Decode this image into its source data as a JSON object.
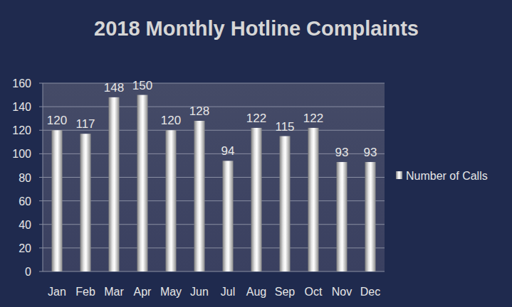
{
  "chart_data": {
    "type": "bar",
    "title": "2018 Monthly Hotline Complaints",
    "categories": [
      "Jan",
      "Feb",
      "Mar",
      "Apr",
      "May",
      "Jun",
      "Jul",
      "Aug",
      "Sep",
      "Oct",
      "Nov",
      "Dec"
    ],
    "series": [
      {
        "name": "Number of Calls",
        "color": "#e8e8e8",
        "values": [
          120,
          117,
          148,
          150,
          120,
          128,
          94,
          122,
          115,
          122,
          93,
          93
        ]
      }
    ],
    "ylim": [
      0,
      160
    ],
    "yticks": [
      0,
      20,
      40,
      60,
      80,
      100,
      120,
      140,
      160
    ],
    "grid": true,
    "data_labels": true,
    "legend": "right"
  }
}
